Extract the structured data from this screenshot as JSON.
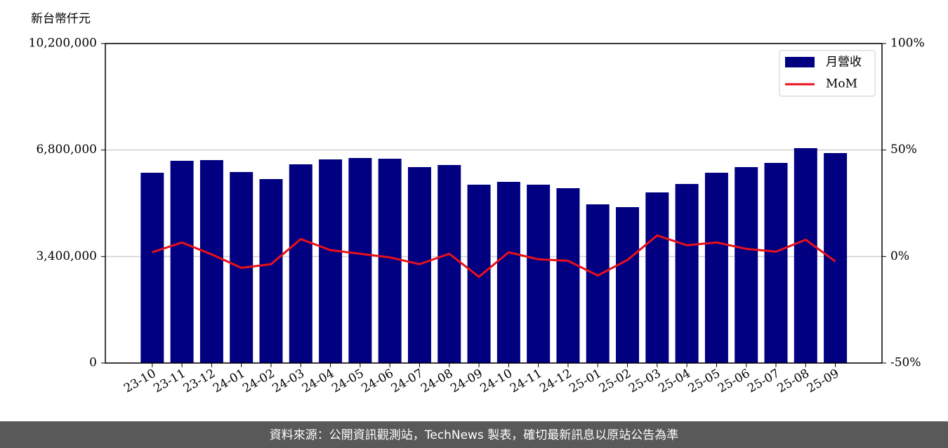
{
  "chart_data": {
    "type": "bar",
    "y_label": "新台幣仟元",
    "footer": "資料來源：公開資訊觀測站，TechNews 製表，確切最新訊息以原站公告為準",
    "categories": [
      "23-10",
      "23-11",
      "23-12",
      "24-01",
      "24-02",
      "24-03",
      "24-04",
      "24-05",
      "24-06",
      "24-07",
      "24-08",
      "24-09",
      "24-10",
      "24-11",
      "24-12",
      "25-01",
      "25-02",
      "25-03",
      "25-04",
      "25-05",
      "25-06",
      "25-07",
      "25-08",
      "25-09"
    ],
    "series": [
      {
        "name": "月營收",
        "type": "bar",
        "color": "#000080",
        "values": [
          6075000,
          6456000,
          6479000,
          6098000,
          5873000,
          6344000,
          6501000,
          6546000,
          6523000,
          6255000,
          6322000,
          5694000,
          5784000,
          5694000,
          5582000,
          5066000,
          4977000,
          5447000,
          5717000,
          6075000,
          6255000,
          6389000,
          6860000,
          6703000
        ]
      },
      {
        "name": "MoM",
        "type": "line",
        "color": "#e8101a",
        "axis": "y2",
        "values": [
          2.0,
          6.6,
          1.0,
          -5.3,
          -3.6,
          8.2,
          3.0,
          1.3,
          -0.4,
          -3.6,
          1.3,
          -9.5,
          2.0,
          -1.3,
          -2.0,
          -8.9,
          -1.6,
          9.9,
          5.3,
          6.6,
          3.6,
          2.3,
          7.9,
          -2.3
        ]
      }
    ],
    "ylim": [
      0,
      10200000
    ],
    "yticks": [
      0,
      {
        "value": 3400000,
        "label": "3,400,000"
      },
      {
        "value": 6800000,
        "label": "6,800,000"
      },
      {
        "value": 10200000,
        "label": "10,200,000"
      }
    ],
    "y2lim": [
      -50,
      100
    ],
    "y2ticks": [
      {
        "value": -50,
        "label": "-50%"
      },
      {
        "value": 0,
        "label": "0%"
      },
      {
        "value": 50,
        "label": "50%"
      },
      {
        "value": 100,
        "label": "100%"
      }
    ],
    "grid": true,
    "legend": "upper right"
  }
}
